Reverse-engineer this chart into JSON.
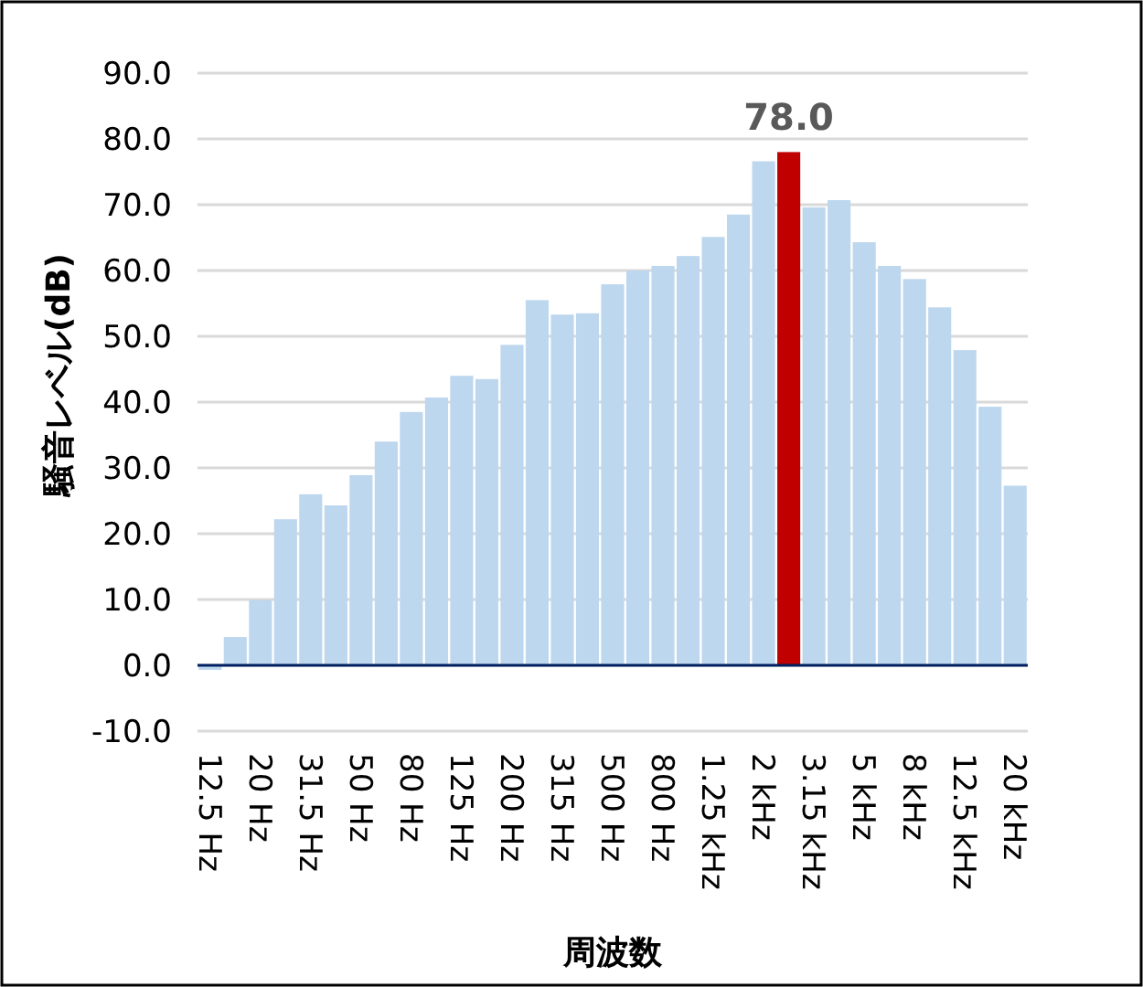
{
  "chart_data": {
    "type": "bar",
    "xlabel": "周波数",
    "ylabel": "騒音レベル(dB)",
    "categories": [
      "12.5 Hz",
      null,
      "20 Hz",
      null,
      "31.5 Hz",
      null,
      "50 Hz",
      null,
      "80 Hz",
      null,
      "125 Hz",
      null,
      "200 Hz",
      null,
      "315 Hz",
      null,
      "500 Hz",
      null,
      "800 Hz",
      null,
      "1.25 kHz",
      null,
      "2 kHz",
      null,
      "3.15 kHz",
      null,
      "5 kHz",
      null,
      "8 kHz",
      null,
      "12.5 kHz",
      null,
      "20 kHz"
    ],
    "values": [
      -0.7,
      4.3,
      9.9,
      22.2,
      26.0,
      24.3,
      28.9,
      34.0,
      38.5,
      40.7,
      44.0,
      43.5,
      48.7,
      55.5,
      53.3,
      53.5,
      57.9,
      60.0,
      60.7,
      62.2,
      65.1,
      68.5,
      76.6,
      78.0,
      69.6,
      70.7,
      64.3,
      60.7,
      58.7,
      54.4,
      47.9,
      39.3,
      27.3
    ],
    "colors": [
      "#bdd7ee",
      "#bdd7ee",
      "#bdd7ee",
      "#bdd7ee",
      "#bdd7ee",
      "#bdd7ee",
      "#bdd7ee",
      "#bdd7ee",
      "#bdd7ee",
      "#bdd7ee",
      "#bdd7ee",
      "#bdd7ee",
      "#bdd7ee",
      "#bdd7ee",
      "#bdd7ee",
      "#bdd7ee",
      "#bdd7ee",
      "#bdd7ee",
      "#bdd7ee",
      "#bdd7ee",
      "#bdd7ee",
      "#bdd7ee",
      "#bdd7ee",
      "#c00000",
      "#bdd7ee",
      "#bdd7ee",
      "#bdd7ee",
      "#bdd7ee",
      "#bdd7ee",
      "#bdd7ee",
      "#bdd7ee",
      "#bdd7ee",
      "#bdd7ee"
    ],
    "value_labels": [
      null,
      null,
      null,
      null,
      null,
      null,
      null,
      null,
      null,
      null,
      null,
      null,
      null,
      null,
      null,
      null,
      null,
      null,
      null,
      null,
      null,
      null,
      null,
      "78.0",
      null,
      null,
      null,
      null,
      null,
      null,
      null,
      null,
      null
    ],
    "ylim": [
      -10,
      90
    ],
    "yticks": [
      {
        "value": -10,
        "label": "-10.0"
      },
      {
        "value": 0,
        "label": "0.0"
      },
      {
        "value": 10,
        "label": "10.0"
      },
      {
        "value": 20,
        "label": "20.0"
      },
      {
        "value": 30,
        "label": "30.0"
      },
      {
        "value": 40,
        "label": "40.0"
      },
      {
        "value": 50,
        "label": "50.0"
      },
      {
        "value": 60,
        "label": "60.0"
      },
      {
        "value": 70,
        "label": "70.0"
      },
      {
        "value": 80,
        "label": "80.0"
      },
      {
        "value": 90,
        "label": "90.0"
      }
    ],
    "grid": "y"
  }
}
